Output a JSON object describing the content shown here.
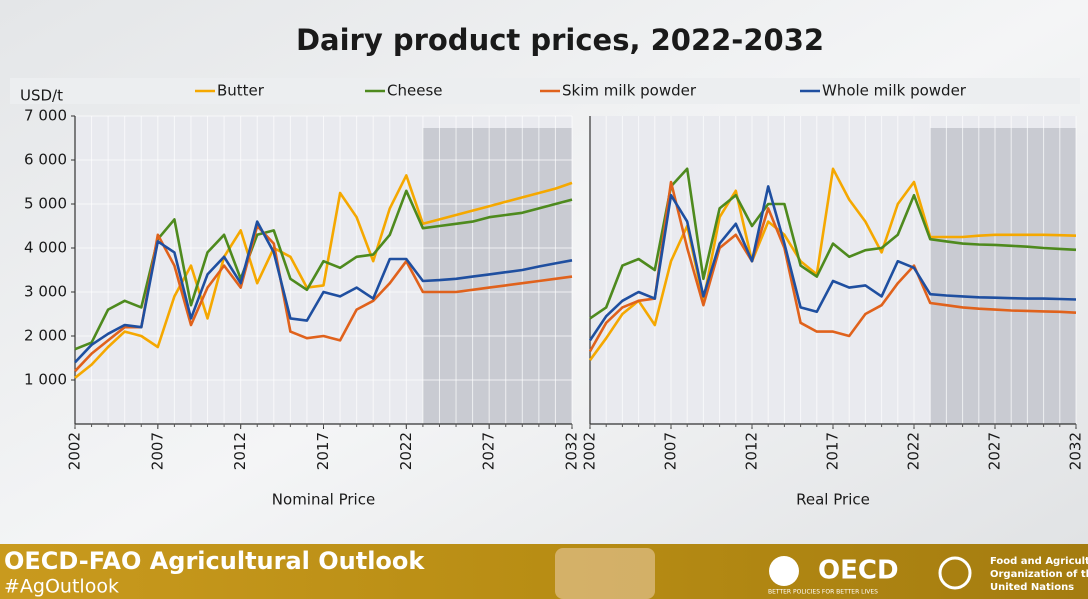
{
  "title": "Dairy product prices, 2022-2032",
  "unit": "USD/t",
  "footer": {
    "title": "OECD-FAO Agricultural Outlook",
    "hashtag": "#AgOutlook",
    "oecd": "OECD",
    "oecd_motto": "BETTER POLICIES FOR BETTER LIVES",
    "fao": [
      "Food and Agriculture",
      "Organization of the",
      "United Nations"
    ]
  },
  "chart_data": [
    {
      "type": "line",
      "xlabel": "Nominal Price",
      "x": [
        2002,
        2003,
        2004,
        2005,
        2006,
        2007,
        2008,
        2009,
        2010,
        2011,
        2012,
        2013,
        2014,
        2015,
        2016,
        2017,
        2018,
        2019,
        2020,
        2021,
        2022,
        2023,
        2024,
        2025,
        2026,
        2027,
        2028,
        2029,
        2030,
        2031,
        2032
      ],
      "xlim": [
        2002,
        2032
      ],
      "xticks": [
        2002,
        2007,
        2012,
        2017,
        2022,
        2027,
        2032
      ],
      "ylim": [
        0,
        7000
      ],
      "yticks": [
        {
          "value": 1000,
          "label": "1 000"
        },
        {
          "value": 2000,
          "label": "2 000"
        },
        {
          "value": 3000,
          "label": "3 000"
        },
        {
          "value": 4000,
          "label": "4 000"
        },
        {
          "value": 5000,
          "label": "5 000"
        },
        {
          "value": 6000,
          "label": "6 000"
        },
        {
          "value": 7000,
          "label": "7 000"
        }
      ],
      "grid": true,
      "projection": [
        2023,
        2032
      ],
      "series": [
        {
          "name": "Butter",
          "color": "#f5a800",
          "values": [
            1050,
            1350,
            1750,
            2100,
            2000,
            1750,
            2900,
            3600,
            2400,
            3800,
            4400,
            3200,
            4000,
            3800,
            3100,
            3150,
            5250,
            4700,
            3700,
            4900,
            5650,
            4550,
            4650,
            4750,
            4850,
            4950,
            5050,
            5150,
            5250,
            5350,
            5480
          ]
        },
        {
          "name": "Cheese",
          "color": "#4e8a1e",
          "values": [
            1700,
            1850,
            2600,
            2800,
            2650,
            4200,
            4650,
            2700,
            3900,
            4300,
            3300,
            4300,
            4400,
            3300,
            3050,
            3700,
            3550,
            3800,
            3850,
            4300,
            5300,
            4450,
            4500,
            4550,
            4600,
            4700,
            4750,
            4800,
            4900,
            5000,
            5100
          ]
        },
        {
          "name": "Skim milk powder",
          "color": "#e0621c",
          "values": [
            1200,
            1600,
            1900,
            2200,
            2200,
            4300,
            3600,
            2250,
            3100,
            3600,
            3100,
            4500,
            4100,
            2100,
            1950,
            2000,
            1900,
            2600,
            2800,
            3200,
            3700,
            3000,
            3000,
            3000,
            3050,
            3100,
            3150,
            3200,
            3250,
            3300,
            3350
          ]
        },
        {
          "name": "Whole milk powder",
          "color": "#1f4fa0",
          "values": [
            1400,
            1800,
            2050,
            2250,
            2200,
            4150,
            3900,
            2400,
            3400,
            3800,
            3200,
            4600,
            3900,
            2400,
            2350,
            3000,
            2900,
            3100,
            2850,
            3750,
            3750,
            3250,
            3270,
            3300,
            3350,
            3400,
            3450,
            3500,
            3580,
            3650,
            3720
          ]
        }
      ]
    },
    {
      "type": "line",
      "xlabel": "Real Price",
      "x": [
        2002,
        2003,
        2004,
        2005,
        2006,
        2007,
        2008,
        2009,
        2010,
        2011,
        2012,
        2013,
        2014,
        2015,
        2016,
        2017,
        2018,
        2019,
        2020,
        2021,
        2022,
        2023,
        2024,
        2025,
        2026,
        2027,
        2028,
        2029,
        2030,
        2031,
        2032
      ],
      "xlim": [
        2002,
        2032
      ],
      "xticks": [
        2002,
        2007,
        2012,
        2017,
        2022,
        2027,
        2032
      ],
      "ylim": [
        0,
        7000
      ],
      "grid": true,
      "projection": [
        2023,
        2032
      ],
      "series": [
        {
          "name": "Butter",
          "color": "#f5a800",
          "values": [
            1450,
            1950,
            2500,
            2800,
            2250,
            3700,
            4500,
            2800,
            4700,
            5300,
            3700,
            4600,
            4300,
            3700,
            3400,
            5800,
            5100,
            4600,
            3900,
            5000,
            5500,
            4250,
            4250,
            4250,
            4280,
            4300,
            4300,
            4300,
            4300,
            4290,
            4280
          ]
        },
        {
          "name": "Cheese",
          "color": "#4e8a1e",
          "values": [
            2400,
            2650,
            3600,
            3750,
            3500,
            5400,
            5800,
            3300,
            4900,
            5200,
            4500,
            5000,
            5000,
            3600,
            3350,
            4100,
            3800,
            3950,
            4000,
            4300,
            5200,
            4200,
            4150,
            4100,
            4080,
            4070,
            4050,
            4030,
            4000,
            3980,
            3960
          ]
        },
        {
          "name": "Skim milk powder",
          "color": "#e0621c",
          "values": [
            1650,
            2300,
            2650,
            2800,
            2850,
            5500,
            4000,
            2700,
            4000,
            4300,
            3700,
            4900,
            4000,
            2300,
            2100,
            2100,
            2000,
            2500,
            2700,
            3200,
            3600,
            2750,
            2700,
            2650,
            2620,
            2600,
            2580,
            2570,
            2560,
            2550,
            2530
          ]
        },
        {
          "name": "Whole milk powder",
          "color": "#1f4fa0",
          "values": [
            1900,
            2450,
            2800,
            3000,
            2850,
            5200,
            4600,
            2900,
            4100,
            4550,
            3700,
            5400,
            4100,
            2650,
            2550,
            3250,
            3100,
            3150,
            2900,
            3700,
            3550,
            2950,
            2920,
            2900,
            2880,
            2870,
            2860,
            2850,
            2850,
            2840,
            2830
          ]
        }
      ]
    }
  ]
}
